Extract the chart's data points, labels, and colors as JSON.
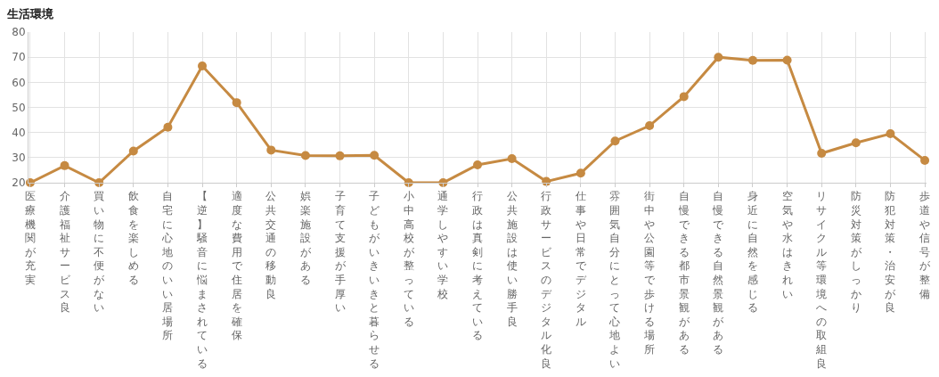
{
  "chart_data": {
    "type": "line",
    "title": "生活環境",
    "categories": [
      "医療機関が充実",
      "介護福祉サービス良",
      "買い物に不便がない",
      "飲食を楽しめる",
      "自宅に心地のいい居場所",
      "【逆】騒音に悩まされている",
      "適度な費用で住居を確保",
      "公共交通の移動良",
      "娯楽施設がある",
      "子育て支援が手厚い",
      "子どもがいきいきと暮らせる",
      "小中高校が整っている",
      "通学しやすい学校",
      "行政は真剣に考えている",
      "公共施設は使い勝手良",
      "行政サービスのデジタル化良",
      "仕事や日常でデジタル",
      "雰囲気自分にとって心地よい",
      "街中や公園等で歩ける場所",
      "自慢できる都市景観がある",
      "自慢できる自然景観がある",
      "身近に自然を感じる",
      "空気や水はきれい",
      "リサイクル等環境への取組良",
      "防災対策がしっかり",
      "防犯対策・治安が良",
      "歩道や信号が整備"
    ],
    "series": [
      {
        "color": "#c68a42",
        "values": [
          20,
          26.8,
          20,
          32.6,
          42.1,
          66.5,
          51.9,
          33.0,
          30.8,
          30.7,
          30.9,
          20,
          20,
          27.1,
          29.6,
          20.5,
          23.8,
          36.6,
          42.7,
          54.3,
          70.0,
          68.7,
          68.8,
          31.7,
          35.9,
          39.5,
          28.9
        ]
      }
    ],
    "ylim": [
      20,
      80
    ],
    "yticks": [
      20,
      30,
      40,
      50,
      60,
      70,
      80
    ],
    "grid": true,
    "marker": "circle",
    "line_style": "solid",
    "legend": false
  }
}
